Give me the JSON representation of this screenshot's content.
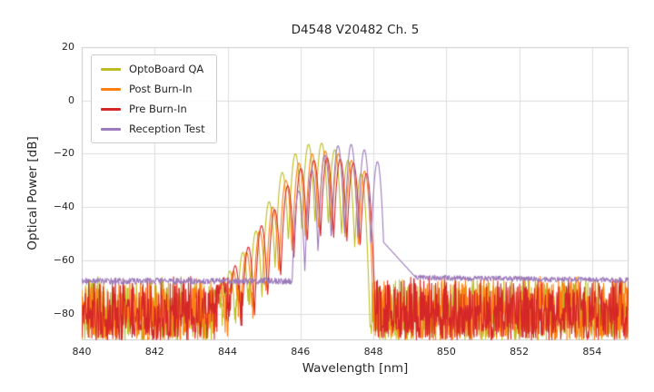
{
  "chart_data": {
    "type": "line",
    "title": "D4548 V20482 Ch. 5",
    "xlabel": "Wavelength [nm]",
    "ylabel": "Optical Power [dB]",
    "xlim": [
      840,
      855
    ],
    "ylim": [
      -90,
      20
    ],
    "x_ticks": [
      840,
      842,
      844,
      846,
      848,
      850,
      852,
      854
    ],
    "y_ticks": [
      20,
      0,
      -20,
      -40,
      -60,
      -80
    ],
    "grid": true,
    "grid_color": "#dcdcdc",
    "spine_color": "#cccccc",
    "legend_position": "upper left",
    "series": [
      {
        "name": "OptoBoard QA",
        "color": "#bcbd22",
        "seed": 101,
        "half_width": 0.18,
        "valley_depth": 30,
        "modes": [
          [
            843.7,
            -70
          ],
          [
            844.06,
            -64
          ],
          [
            844.42,
            -57
          ],
          [
            844.78,
            -49
          ],
          [
            845.14,
            -38
          ],
          [
            845.5,
            -27
          ],
          [
            845.86,
            -20
          ],
          [
            846.22,
            -16.5
          ],
          [
            846.58,
            -16.0
          ],
          [
            846.94,
            -18.5
          ],
          [
            847.3,
            -22.5
          ],
          [
            847.66,
            -27.5
          ]
        ],
        "floor": {
          "type": "spiky",
          "top": -66,
          "span": 24
        }
      },
      {
        "name": "Post Burn-In",
        "color": "#ff7f0e",
        "seed": 202,
        "half_width": 0.18,
        "valley_depth": 30,
        "modes": [
          [
            843.8,
            -70
          ],
          [
            844.16,
            -64
          ],
          [
            844.52,
            -57
          ],
          [
            844.88,
            -49
          ],
          [
            845.24,
            -40
          ],
          [
            845.6,
            -30
          ],
          [
            845.96,
            -23.5
          ],
          [
            846.32,
            -20.0
          ],
          [
            846.68,
            -19.0
          ],
          [
            847.04,
            -20.0
          ],
          [
            847.4,
            -22.5
          ],
          [
            847.76,
            -26.5
          ]
        ],
        "floor": {
          "type": "spiky",
          "top": -66,
          "span": 24
        }
      },
      {
        "name": "Pre Burn-In",
        "color": "#d62728",
        "seed": 303,
        "half_width": 0.18,
        "valley_depth": 30,
        "modes": [
          [
            843.85,
            -68
          ],
          [
            844.21,
            -62
          ],
          [
            844.57,
            -55
          ],
          [
            844.93,
            -47
          ],
          [
            845.29,
            -41
          ],
          [
            845.65,
            -32
          ],
          [
            846.01,
            -25.5
          ],
          [
            846.37,
            -22.5
          ],
          [
            846.73,
            -21.5
          ],
          [
            847.09,
            -22.0
          ],
          [
            847.45,
            -23.5
          ],
          [
            847.81,
            -27.5
          ]
        ],
        "floor": {
          "type": "spiky",
          "top": -66,
          "span": 24
        }
      },
      {
        "name": "Reception Test",
        "color": "#9c7bbc",
        "seed": 404,
        "half_width": 0.18,
        "valley_depth": 34,
        "modes": [
          [
            845.95,
            -34
          ],
          [
            846.31,
            -26
          ],
          [
            846.67,
            -20.5
          ],
          [
            847.03,
            -17.0
          ],
          [
            847.39,
            -16.5
          ],
          [
            847.75,
            -18.5
          ],
          [
            848.11,
            -23.0
          ]
        ],
        "floor": {
          "type": "band",
          "left_level": -67.8,
          "left_amp": 2.4,
          "left_until": 845.8,
          "right_from": 848.2,
          "right_level": -66.4,
          "right_amp": 2.0,
          "right_slope": -0.18,
          "right_slope_from": 849
        },
        "tail": {
          "x0": 848.2,
          "y0": -52,
          "slope": -15,
          "x1": 849.4
        }
      }
    ]
  }
}
